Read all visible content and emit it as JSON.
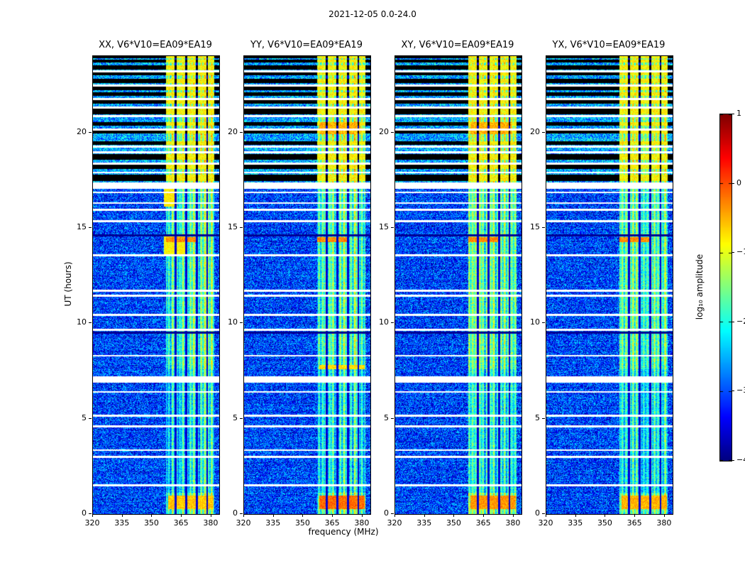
{
  "chart_data": {
    "type": "heatmap",
    "suptitle": "2021-12-05 0.0-24.0",
    "xlabel": "frequency (MHz)",
    "ylabel": "UT (hours)",
    "panels": [
      {
        "label": "XX, V6*V10=EA09*EA19"
      },
      {
        "label": "YY, V6*V10=EA09*EA19"
      },
      {
        "label": "XY, V6*V10=EA09*EA19"
      },
      {
        "label": "YX, V6*V10=EA09*EA19"
      }
    ],
    "x_range": [
      320,
      384
    ],
    "y_range": [
      0,
      24
    ],
    "x_tick_values": [
      320,
      335,
      350,
      365,
      380
    ],
    "x_ticks": [
      "320",
      "335",
      "350",
      "365",
      "380"
    ],
    "y_tick_values": [
      0,
      5,
      10,
      15,
      20
    ],
    "y_ticks": [
      "0",
      "5",
      "10",
      "15",
      "20"
    ],
    "colorbar": {
      "label": "log₁₀ amplitude",
      "colormap": "jet",
      "range": [
        -4,
        1
      ],
      "tick_values": [
        1,
        0,
        -1,
        -2,
        -3,
        -4
      ],
      "ticks": [
        "1",
        "0",
        "−1",
        "−2",
        "−3",
        "−4"
      ]
    },
    "features": {
      "noise_mean": -3.1,
      "noise_spread": 0.85,
      "band_freq": [
        357,
        381.5
      ],
      "dark_channels": [
        361.8,
        367.2,
        372.6,
        377.8
      ],
      "band_time_boost": [
        [
          0,
          1.1,
          0.55
        ],
        [
          1.1,
          7.6,
          0.05
        ],
        [
          7.6,
          17.3,
          0.4
        ],
        [
          17.3,
          24.01,
          0.85
        ]
      ],
      "upper_start": 17.3,
      "upper_noise_boost": 0.55,
      "white_lines": [
        1.5,
        3.0,
        3.35,
        4.6,
        5.15,
        6.4,
        6.95,
        8.3,
        9.65,
        10.45,
        11.45,
        11.7,
        13.55,
        15.35,
        15.95,
        16.3,
        16.85,
        17.1,
        17.9,
        18.35,
        18.95,
        19.25,
        20.15,
        20.85,
        21.3,
        21.75,
        22.45,
        23.2
      ],
      "thick_white_lines": [
        7.1,
        17.28
      ],
      "dark_lines": [
        9.5,
        14.6
      ],
      "black_bands": [
        [
          17.45,
          17.8
        ],
        [
          18.1,
          18.3
        ],
        [
          18.55,
          18.85
        ],
        [
          19.35,
          19.55
        ],
        [
          19.95,
          20.1
        ],
        [
          20.35,
          20.55
        ],
        [
          20.95,
          21.25
        ],
        [
          21.5,
          21.7
        ],
        [
          21.9,
          22.1
        ],
        [
          22.2,
          22.4
        ],
        [
          22.6,
          22.8
        ],
        [
          23.0,
          23.15
        ],
        [
          23.3,
          23.5
        ],
        [
          23.65,
          23.82
        ],
        [
          23.9,
          24.0
        ]
      ],
      "hot_regions": [
        {
          "t": [
            0.25,
            0.95
          ],
          "f": [
            358,
            381
          ],
          "level": -0.6,
          "panels": [
            0
          ]
        },
        {
          "t": [
            0.25,
            0.95
          ],
          "f": [
            358,
            381
          ],
          "level": -0.15,
          "panels": [
            1
          ]
        },
        {
          "t": [
            0.25,
            0.95
          ],
          "f": [
            358,
            381
          ],
          "level": -0.35,
          "panels": [
            2
          ]
        },
        {
          "t": [
            0.25,
            0.95
          ],
          "f": [
            358,
            381
          ],
          "level": -0.5,
          "panels": [
            3
          ]
        },
        {
          "t": [
            13.5,
            14.6
          ],
          "f": [
            356,
            367
          ],
          "level": -0.85,
          "panels": [
            0
          ]
        },
        {
          "t": [
            16.1,
            17.2
          ],
          "f": [
            356,
            362
          ],
          "level": -0.8,
          "panels": [
            0
          ]
        },
        {
          "t": [
            14.25,
            14.5
          ],
          "f": [
            357,
            373
          ],
          "level": -0.3,
          "panels": [
            0,
            1,
            2,
            3
          ]
        },
        {
          "t": [
            19.9,
            20.55
          ],
          "f": [
            358,
            379
          ],
          "level": -0.5,
          "panels": [
            1,
            2
          ]
        },
        {
          "t": [
            7.6,
            7.8
          ],
          "f": [
            358,
            381
          ],
          "level": -0.7,
          "panels": [
            1
          ]
        }
      ]
    }
  }
}
